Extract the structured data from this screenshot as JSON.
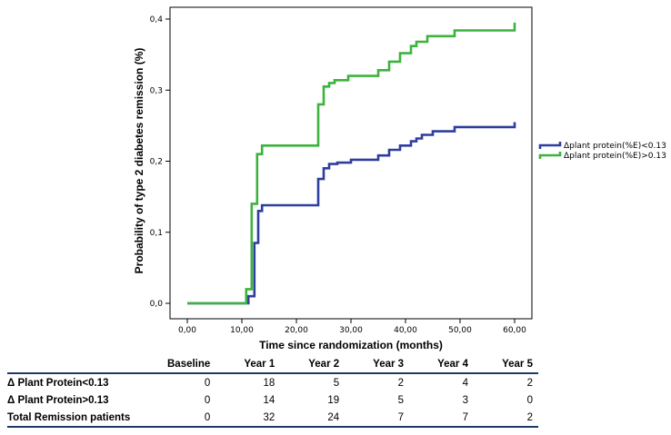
{
  "chart_data": {
    "type": "line",
    "step": true,
    "xlabel": "Time since randomization (months)",
    "ylabel": "Probability of type 2 diabetes remission (%)",
    "xlim": [
      0,
      60
    ],
    "ylim": [
      0,
      0.4
    ],
    "x_ticks": [
      0,
      10,
      20,
      30,
      40,
      50,
      60
    ],
    "x_tick_labels": [
      "0,00",
      "10,00",
      "20,00",
      "30,00",
      "40,00",
      "50,00",
      "60,00"
    ],
    "y_ticks": [
      0,
      0.1,
      0.2,
      0.3,
      0.4
    ],
    "y_tick_labels": [
      "0,0",
      "0,1",
      "0,2",
      "0,3",
      "0,4"
    ],
    "grid": false,
    "legend_position": "right",
    "series": [
      {
        "name": "Δplant protein(%E)<0.13",
        "color": "#2e3e9e",
        "points": [
          [
            0,
            0
          ],
          [
            11.2,
            0
          ],
          [
            11.2,
            0.01
          ],
          [
            12.3,
            0.01
          ],
          [
            12.3,
            0.085
          ],
          [
            13,
            0.085
          ],
          [
            13,
            0.13
          ],
          [
            13.7,
            0.13
          ],
          [
            13.7,
            0.138
          ],
          [
            24,
            0.138
          ],
          [
            24,
            0.175
          ],
          [
            25,
            0.175
          ],
          [
            25,
            0.19
          ],
          [
            26,
            0.19
          ],
          [
            26,
            0.196
          ],
          [
            27.5,
            0.196
          ],
          [
            27.5,
            0.198
          ],
          [
            30,
            0.198
          ],
          [
            30,
            0.202
          ],
          [
            35,
            0.202
          ],
          [
            35,
            0.208
          ],
          [
            37,
            0.208
          ],
          [
            37,
            0.216
          ],
          [
            39,
            0.216
          ],
          [
            39,
            0.222
          ],
          [
            41,
            0.222
          ],
          [
            41,
            0.228
          ],
          [
            42,
            0.228
          ],
          [
            42,
            0.232
          ],
          [
            43,
            0.232
          ],
          [
            43,
            0.237
          ],
          [
            45,
            0.237
          ],
          [
            45,
            0.242
          ],
          [
            49,
            0.242
          ],
          [
            49,
            0.248
          ],
          [
            60,
            0.248
          ],
          [
            60,
            0.255
          ]
        ]
      },
      {
        "name": "Δplant protein(%E)>0.13",
        "color": "#3db33d",
        "points": [
          [
            0,
            0
          ],
          [
            10.8,
            0
          ],
          [
            10.8,
            0.02
          ],
          [
            11.8,
            0.02
          ],
          [
            11.8,
            0.14
          ],
          [
            12.8,
            0.14
          ],
          [
            12.8,
            0.21
          ],
          [
            13.7,
            0.21
          ],
          [
            13.7,
            0.222
          ],
          [
            24,
            0.222
          ],
          [
            24,
            0.28
          ],
          [
            25,
            0.28
          ],
          [
            25,
            0.305
          ],
          [
            26,
            0.305
          ],
          [
            26,
            0.31
          ],
          [
            27,
            0.31
          ],
          [
            27,
            0.314
          ],
          [
            29.5,
            0.314
          ],
          [
            29.5,
            0.32
          ],
          [
            35,
            0.32
          ],
          [
            35,
            0.328
          ],
          [
            37,
            0.328
          ],
          [
            37,
            0.34
          ],
          [
            39,
            0.34
          ],
          [
            39,
            0.352
          ],
          [
            41,
            0.352
          ],
          [
            41,
            0.362
          ],
          [
            42,
            0.362
          ],
          [
            42,
            0.368
          ],
          [
            44,
            0.368
          ],
          [
            44,
            0.376
          ],
          [
            49,
            0.376
          ],
          [
            49,
            0.384
          ],
          [
            60,
            0.384
          ],
          [
            60,
            0.395
          ]
        ]
      }
    ]
  },
  "table": {
    "headers": [
      "",
      "Baseline",
      "Year 1",
      "Year 2",
      "Year 3",
      "Year 4",
      "Year 5"
    ],
    "rows": [
      {
        "label": "Δ Plant Protein<0.13",
        "values": [
          "0",
          "18",
          "5",
          "2",
          "4",
          "2"
        ]
      },
      {
        "label": "Δ Plant Protein>0.13",
        "values": [
          "0",
          "14",
          "19",
          "5",
          "3",
          "0"
        ]
      },
      {
        "label": "Total Remission patients",
        "values": [
          "0",
          "32",
          "24",
          "7",
          "7",
          "2"
        ]
      }
    ]
  }
}
